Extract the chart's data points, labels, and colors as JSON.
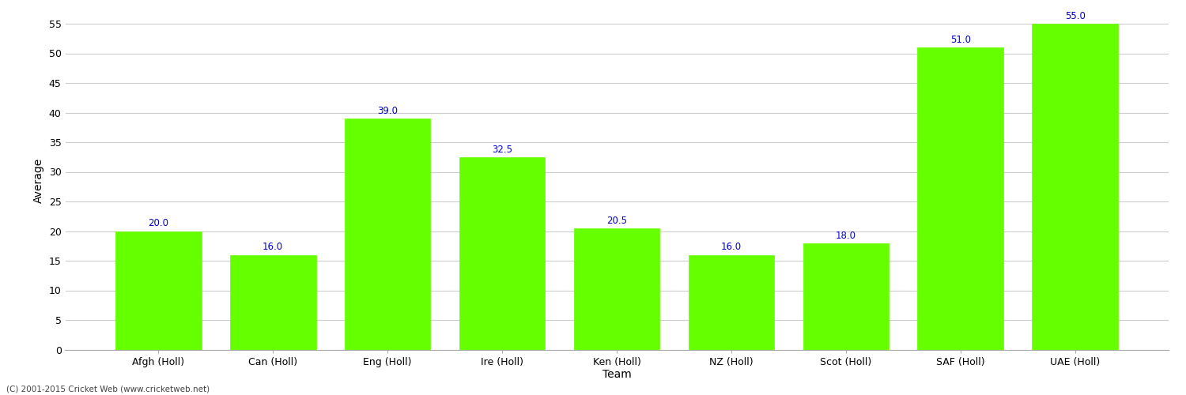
{
  "categories": [
    "Afgh (Holl)",
    "Can (Holl)",
    "Eng (Holl)",
    "Ire (Holl)",
    "Ken (Holl)",
    "NZ (Holl)",
    "Scot (Holl)",
    "SAF (Holl)",
    "UAE (Holl)"
  ],
  "values": [
    20.0,
    16.0,
    39.0,
    32.5,
    20.5,
    16.0,
    18.0,
    51.0,
    55.0
  ],
  "bar_color": "#66ff00",
  "bar_edge_color": "#66ff00",
  "label_color": "#0000cc",
  "xlabel": "Team",
  "ylabel": "Average",
  "ylim": [
    0,
    57
  ],
  "yticks": [
    0,
    5,
    10,
    15,
    20,
    25,
    30,
    35,
    40,
    45,
    50,
    55
  ],
  "grid_color": "#cccccc",
  "background_color": "#ffffff",
  "label_fontsize": 8.5,
  "axis_fontsize": 9,
  "title_fontsize": 12,
  "footnote": "(C) 2001-2015 Cricket Web (www.cricketweb.net)"
}
